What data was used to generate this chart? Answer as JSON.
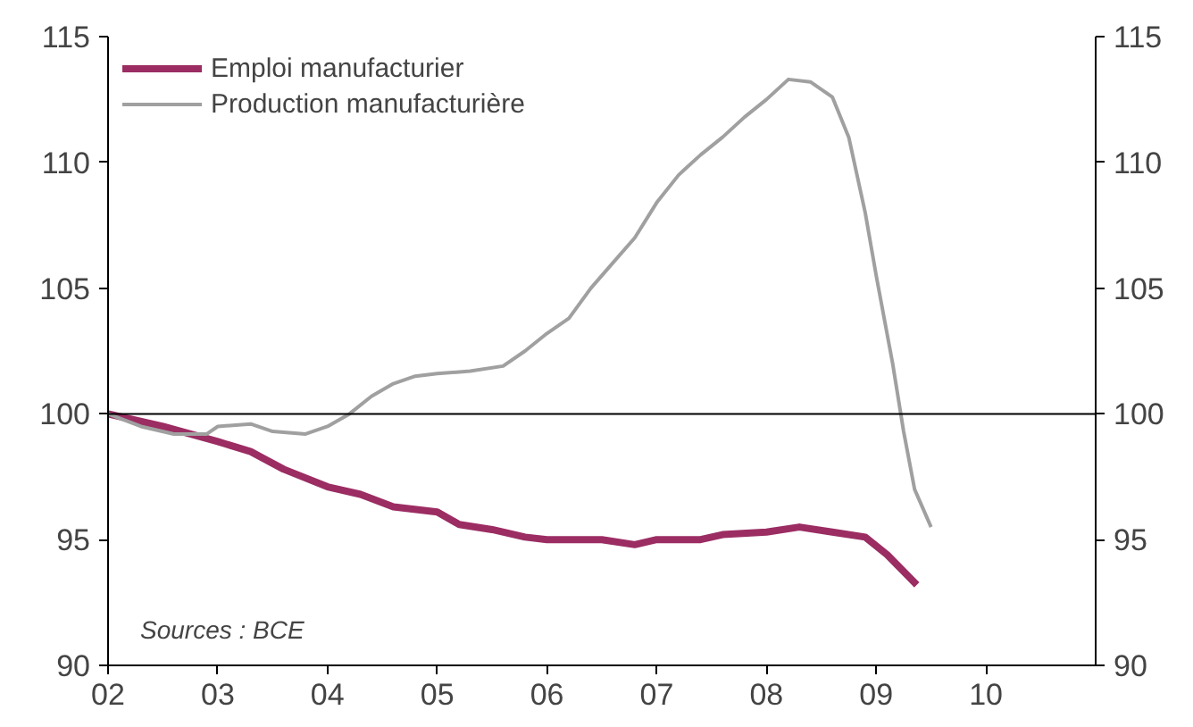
{
  "chart_data": {
    "type": "line",
    "xlim": [
      2,
      11
    ],
    "xticks": [
      {
        "value": 2,
        "label": "02"
      },
      {
        "value": 3,
        "label": "03"
      },
      {
        "value": 4,
        "label": "04"
      },
      {
        "value": 5,
        "label": "05"
      },
      {
        "value": 6,
        "label": "06"
      },
      {
        "value": 7,
        "label": "07"
      },
      {
        "value": 8,
        "label": "08"
      },
      {
        "value": 9,
        "label": "09"
      },
      {
        "value": 10,
        "label": "10"
      }
    ],
    "ylim": [
      90,
      115
    ],
    "yticks": [
      90,
      95,
      100,
      105,
      110,
      115
    ],
    "y2lim": [
      90,
      115
    ],
    "y2ticks": [
      90,
      95,
      100,
      105,
      110,
      115
    ],
    "grid": false,
    "legend": "top left",
    "line_style": "solid",
    "marker": "none",
    "ref_lines": [
      {
        "axis": "y",
        "value": 100,
        "label": null,
        "color": "#000000"
      }
    ],
    "annotations": [
      "Sources : BCE"
    ],
    "series": [
      {
        "name": "Emploi manufacturier",
        "color": "#9b2d63",
        "x": [
          2.0,
          2.5,
          3.0,
          3.3,
          3.6,
          4.0,
          4.3,
          4.6,
          5.0,
          5.2,
          5.5,
          5.8,
          6.0,
          6.5,
          6.8,
          7.0,
          7.4,
          7.6,
          8.0,
          8.3,
          8.6,
          8.9,
          9.1,
          9.37
        ],
        "values": [
          100,
          99.5,
          98.9,
          98.5,
          97.8,
          97.1,
          96.8,
          96.3,
          96.1,
          95.6,
          95.4,
          95.1,
          95.0,
          95.0,
          94.8,
          95.0,
          95.0,
          95.2,
          95.3,
          95.5,
          95.3,
          95.1,
          94.4,
          93.2
        ]
      },
      {
        "name": "Production manufacturière",
        "color": "#a0a0a0",
        "x": [
          2.0,
          2.3,
          2.6,
          2.9,
          3.0,
          3.3,
          3.5,
          3.8,
          4.0,
          4.2,
          4.4,
          4.6,
          4.8,
          5.0,
          5.3,
          5.6,
          5.8,
          6.0,
          6.2,
          6.4,
          6.6,
          6.8,
          7.0,
          7.2,
          7.4,
          7.6,
          7.8,
          8.0,
          8.2,
          8.4,
          8.6,
          8.75,
          8.9,
          9.0,
          9.15,
          9.25,
          9.35,
          9.5
        ],
        "values": [
          100,
          99.5,
          99.2,
          99.2,
          99.5,
          99.6,
          99.3,
          99.2,
          99.5,
          100,
          100.7,
          101.2,
          101.5,
          101.6,
          101.7,
          101.9,
          102.5,
          103.2,
          103.8,
          105,
          106,
          107,
          108.4,
          109.5,
          110.3,
          111,
          111.8,
          112.5,
          113.3,
          113.2,
          112.6,
          111,
          108,
          105.5,
          102,
          99.3,
          97,
          95.5
        ]
      }
    ]
  }
}
